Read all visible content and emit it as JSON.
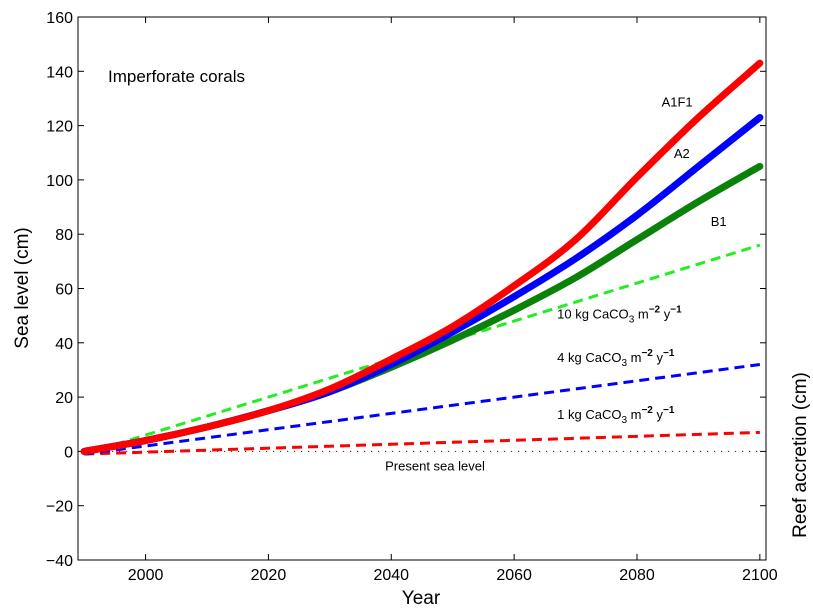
{
  "chart_data": {
    "type": "line",
    "title": "",
    "panel_label": "Imperforate corals",
    "xlabel": "Year",
    "ylabel": "Sea level (cm)",
    "ylabel_right": "Reef accretion (cm)",
    "xlim": [
      1989,
      2101
    ],
    "ylim": [
      -40,
      160
    ],
    "xticks": [
      2000,
      2020,
      2040,
      2060,
      2080,
      2100
    ],
    "yticks": [
      -40,
      -20,
      0,
      20,
      40,
      60,
      80,
      100,
      120,
      140,
      160
    ],
    "grid": false,
    "legend": "none",
    "series": [
      {
        "name": "A1F1",
        "color": "#ff0000",
        "style": "solid",
        "x": [
          1990,
          2000,
          2010,
          2020,
          2030,
          2040,
          2050,
          2060,
          2070,
          2080,
          2090,
          2100
        ],
        "y": [
          0,
          4,
          9,
          15,
          23,
          34,
          46,
          61,
          78,
          101,
          123,
          143
        ]
      },
      {
        "name": "A2",
        "color": "#0000ff",
        "style": "solid",
        "x": [
          1990,
          2000,
          2010,
          2020,
          2030,
          2040,
          2050,
          2060,
          2070,
          2080,
          2090,
          2100
        ],
        "y": [
          0,
          4,
          9,
          15,
          22,
          32,
          44,
          57,
          71,
          87,
          105,
          123
        ]
      },
      {
        "name": "B1",
        "color": "#0a820a",
        "style": "solid",
        "x": [
          1990,
          2000,
          2010,
          2020,
          2030,
          2040,
          2050,
          2060,
          2070,
          2080,
          2090,
          2100
        ],
        "y": [
          0,
          4,
          9,
          15,
          22,
          31,
          41,
          52,
          64,
          78,
          92,
          105
        ]
      },
      {
        "name": "10 kg CaCO3 m-2 y-1",
        "color": "#22ee22",
        "style": "dashed",
        "x": [
          1990,
          2100
        ],
        "y": [
          -1,
          76
        ]
      },
      {
        "name": "4 kg CaCO3 m-2 y-1",
        "color": "#0000ff",
        "style": "dashed",
        "x": [
          1990,
          2100
        ],
        "y": [
          -1,
          32
        ]
      },
      {
        "name": "1 kg CaCO3 m-2 y-1",
        "color": "#ff0000",
        "style": "dashed",
        "x": [
          1990,
          2100
        ],
        "y": [
          -1,
          7
        ]
      },
      {
        "name": "Present sea level",
        "color": "#000000",
        "style": "dotted",
        "x": [
          1990,
          2100
        ],
        "y": [
          0,
          0
        ]
      }
    ],
    "annotations": [
      {
        "text": "A1F1",
        "x": 2084,
        "y": 127
      },
      {
        "text": "A2",
        "x": 2086,
        "y": 108
      },
      {
        "text": "B1",
        "x": 2092,
        "y": 83
      },
      {
        "text": "Present sea level",
        "x": 2039,
        "y": -7
      }
    ],
    "kg_labels": [
      {
        "num": "10",
        "x": 2067,
        "y": 49
      },
      {
        "num": "4",
        "x": 2067,
        "y": 33
      },
      {
        "num": "1",
        "x": 2067,
        "y": 12
      }
    ],
    "kg_label_parts": {
      "prefix": " kg CaCO",
      "sub3": "3",
      "m": " m",
      "sup": "−2",
      "y": " y",
      "sup2": "−1"
    }
  }
}
